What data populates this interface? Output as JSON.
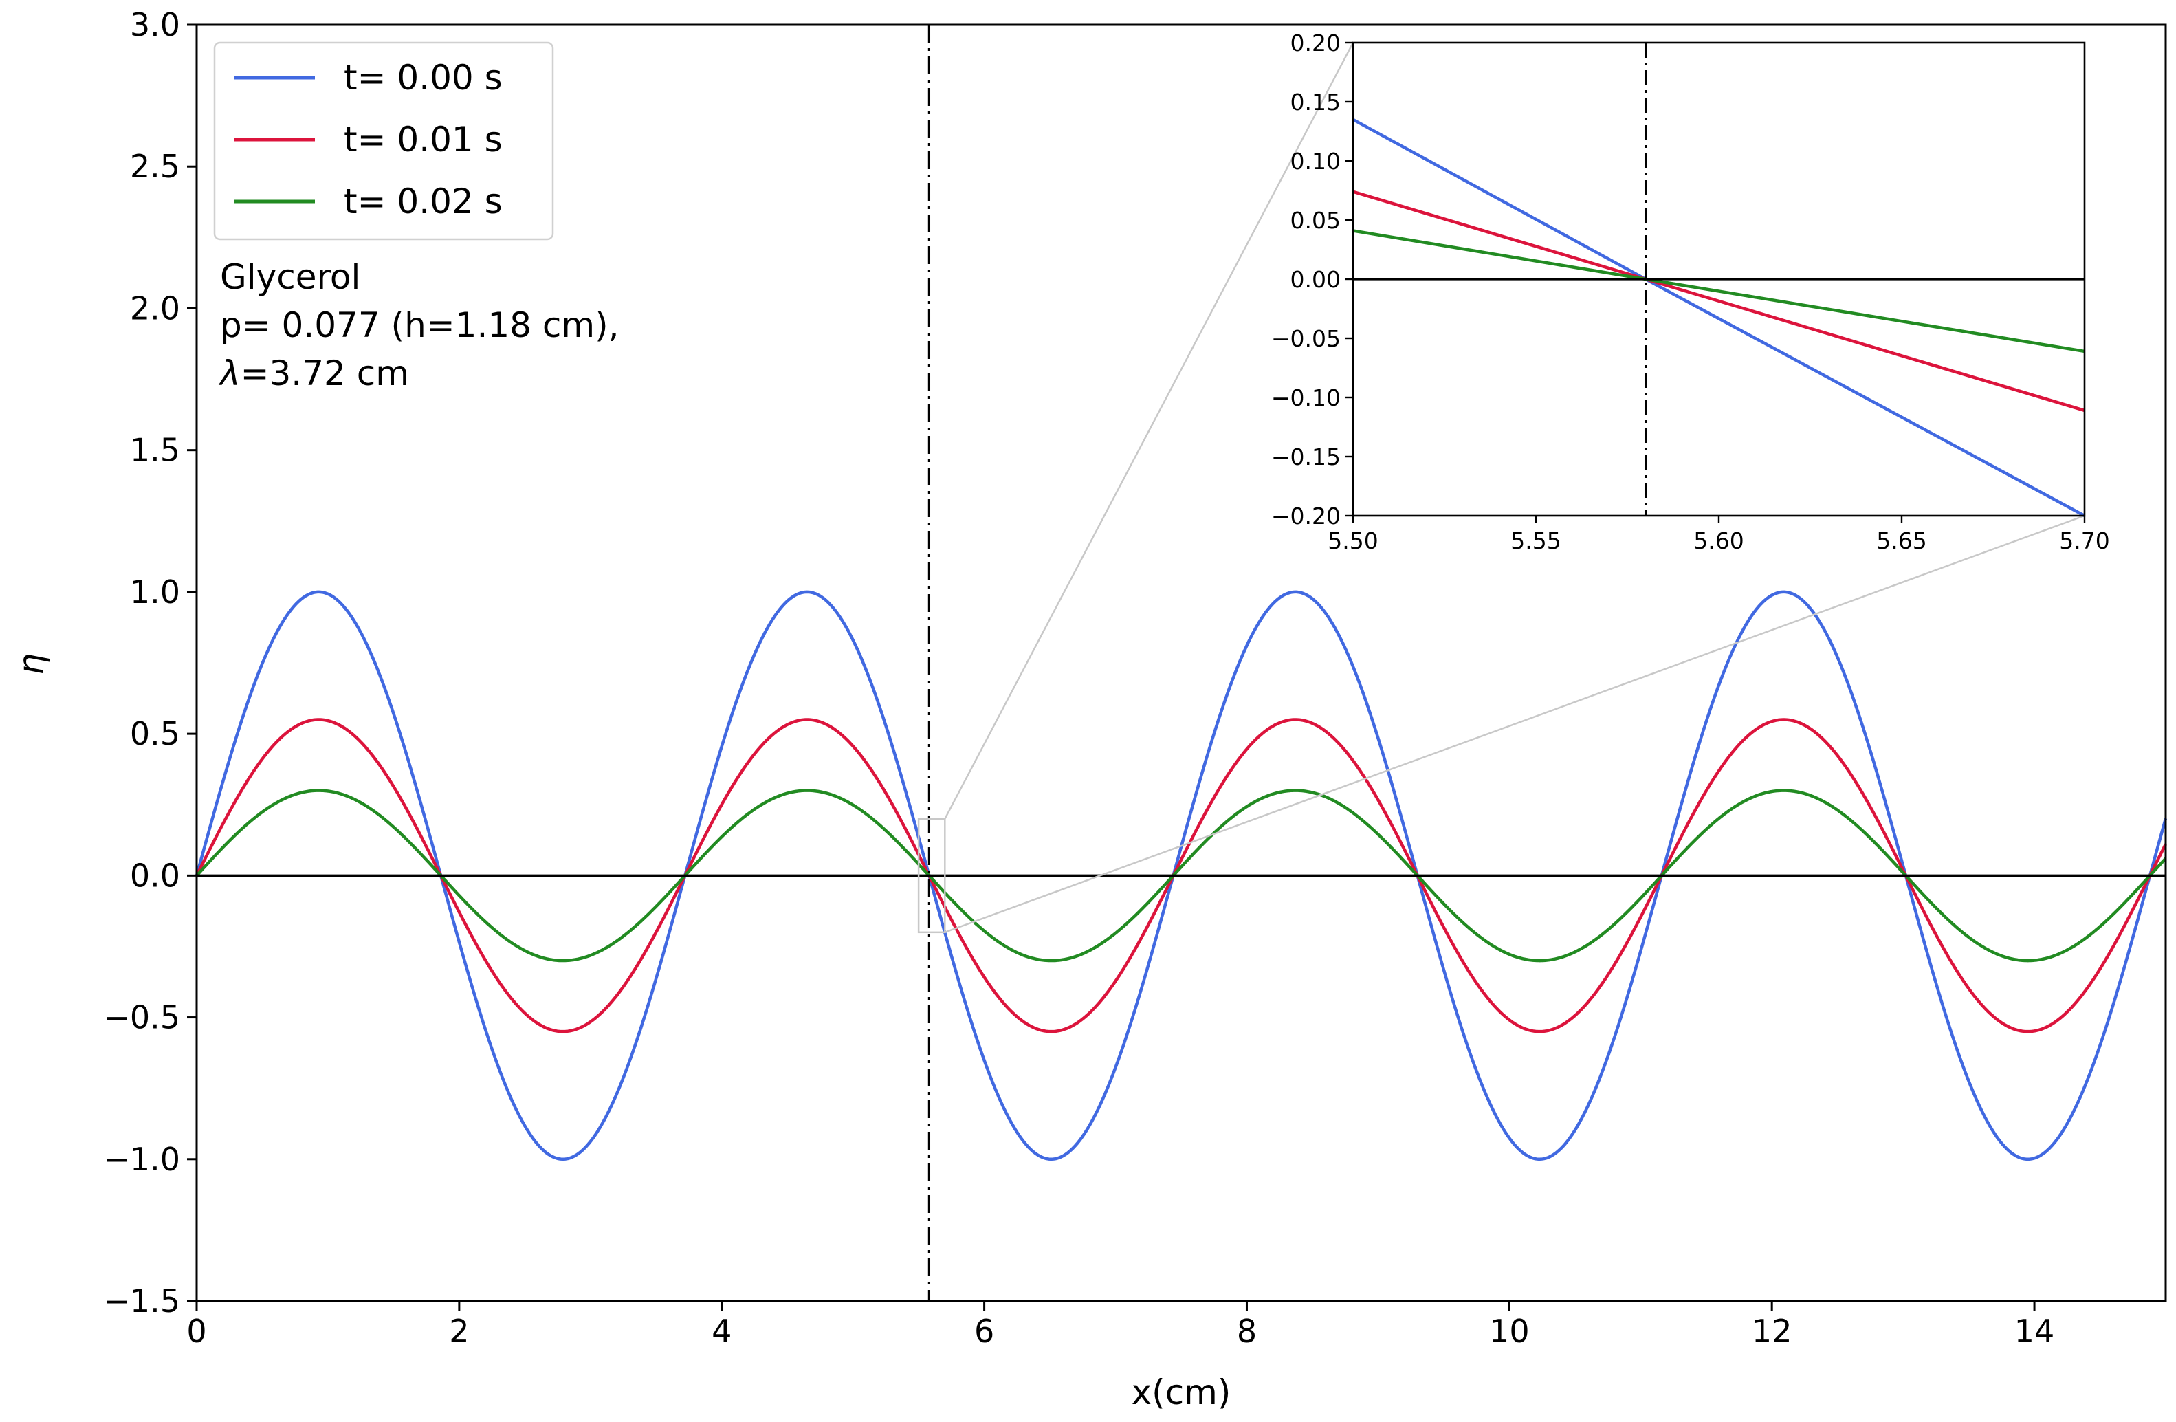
{
  "chart_data": {
    "main": {
      "type": "line",
      "xlabel": "x(cm)",
      "ylabel": "η",
      "xlim": [
        0,
        15
      ],
      "ylim": [
        -1.5,
        3.0
      ],
      "xticks": [
        0,
        2,
        4,
        6,
        8,
        10,
        12,
        14
      ],
      "xtick_labels": [
        "0",
        "2",
        "4",
        "6",
        "8",
        "10",
        "12",
        "14"
      ],
      "yticks": [
        -1.5,
        -1.0,
        -0.5,
        0.0,
        0.5,
        1.0,
        1.5,
        2.0,
        2.5,
        3.0
      ],
      "ytick_labels": [
        "−1.5",
        "−1.0",
        "−0.5",
        "0.0",
        "0.5",
        "1.0",
        "1.5",
        "2.0",
        "2.5",
        "3.0"
      ],
      "wavelength_cm": 3.72,
      "series": [
        {
          "name": "t= 0.00 s",
          "amplitude": 1.0,
          "color": "#4169e1"
        },
        {
          "name": "t= 0.01 s",
          "amplitude": 0.55,
          "color": "#dc143c"
        },
        {
          "name": "t= 0.02 s",
          "amplitude": 0.3,
          "color": "#228b22"
        }
      ],
      "vertical_line_x": 5.58,
      "horizontal_line_y": 0.0,
      "annotation": {
        "line1": "Glycerol",
        "line2": "p= 0.077 (h=1.18 cm),",
        "line3_symbol": "λ",
        "line3_rest": "=3.72 cm"
      },
      "legend_position": "upper-left",
      "zoom_box": {
        "x": [
          5.5,
          5.7
        ],
        "y": [
          -0.2,
          0.2
        ]
      }
    },
    "inset": {
      "type": "line",
      "xlim": [
        5.5,
        5.7
      ],
      "ylim": [
        -0.2,
        0.2
      ],
      "xticks": [
        5.5,
        5.55,
        5.6,
        5.65,
        5.7
      ],
      "xtick_labels": [
        "5.50",
        "5.55",
        "5.60",
        "5.65",
        "5.70"
      ],
      "yticks": [
        -0.2,
        -0.15,
        -0.1,
        -0.05,
        0.0,
        0.05,
        0.1,
        0.15,
        0.2
      ],
      "ytick_labels": [
        "−0.20",
        "−0.15",
        "−0.10",
        "−0.05",
        "0.00",
        "0.05",
        "0.10",
        "0.15",
        "0.20"
      ],
      "vertical_line_x": 5.58,
      "horizontal_line_y": 0.0,
      "series": [
        {
          "name": "t= 0.00 s",
          "points": [
            [
              5.5,
              0.135
            ],
            [
              5.58,
              0.0
            ],
            [
              5.7,
              -0.2
            ]
          ]
        },
        {
          "name": "t= 0.01 s",
          "points": [
            [
              5.5,
              0.074
            ],
            [
              5.58,
              0.0
            ],
            [
              5.7,
              -0.111
            ]
          ]
        },
        {
          "name": "t= 0.02 s",
          "points": [
            [
              5.5,
              0.041
            ],
            [
              5.58,
              0.0
            ],
            [
              5.7,
              -0.061
            ]
          ]
        }
      ]
    }
  }
}
